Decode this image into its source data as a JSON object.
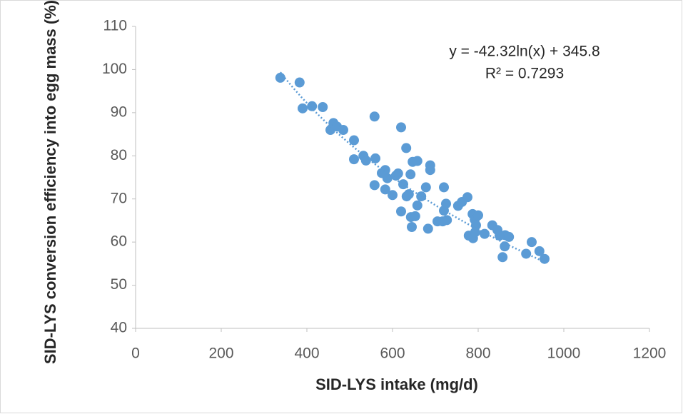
{
  "chart_data": {
    "type": "scatter",
    "x_label": "SID-LYS  intake (mg/d)",
    "y_label": "SID-LYS conversion efficiency into egg mass (%)",
    "color": "#5b9bd5",
    "xlim": [
      0,
      1200
    ],
    "xticks": [
      0,
      200,
      400,
      600,
      800,
      1000,
      1200
    ],
    "ylim": [
      40,
      110
    ],
    "yticks": [
      40,
      50,
      60,
      70,
      80,
      90,
      100,
      110
    ],
    "grid": false,
    "trendline": {
      "kind": "log",
      "slope": -42.32,
      "intercept": 345.8,
      "r2": 0.7293,
      "equation": "y = -42.32ln(x) + 345.8",
      "r2_label": "R² = 0.7293"
    },
    "x": [
      338,
      383,
      390,
      412,
      437,
      462,
      470,
      455,
      485,
      510,
      510,
      532,
      538,
      558,
      560,
      558,
      575,
      583,
      588,
      583,
      600,
      608,
      613,
      620,
      625,
      620,
      632,
      642,
      638,
      633,
      647,
      658,
      643,
      645,
      653,
      658,
      667,
      678,
      688,
      688,
      683,
      705,
      720,
      725,
      720,
      717,
      727,
      753,
      762,
      775,
      778,
      787,
      792,
      788,
      795,
      800,
      793,
      815,
      833,
      845,
      850,
      863,
      872,
      862,
      857,
      912,
      925,
      943,
      955
    ],
    "values": [
      98.1,
      97,
      91,
      91.5,
      91.3,
      87.6,
      86.8,
      86,
      86,
      83.6,
      79.2,
      80,
      78.9,
      89.1,
      79.4,
      73.2,
      76,
      76.7,
      74.8,
      72.2,
      70.9,
      75.4,
      75.9,
      86.6,
      73.4,
      67.1,
      81.8,
      75.7,
      71.1,
      70.6,
      78.6,
      78.8,
      65.8,
      63.5,
      66,
      68.5,
      70.6,
      72.7,
      77.8,
      76.7,
      63.1,
      64.8,
      72.7,
      68.9,
      67.3,
      64.8,
      65.1,
      68.4,
      69.3,
      70.4,
      61.5,
      66.5,
      65.2,
      60.9,
      63.9,
      66.2,
      62.3,
      61.9,
      63.9,
      62.8,
      61.5,
      61.6,
      61.2,
      59,
      56.5,
      57.3,
      60,
      57.9,
      56.1
    ]
  }
}
